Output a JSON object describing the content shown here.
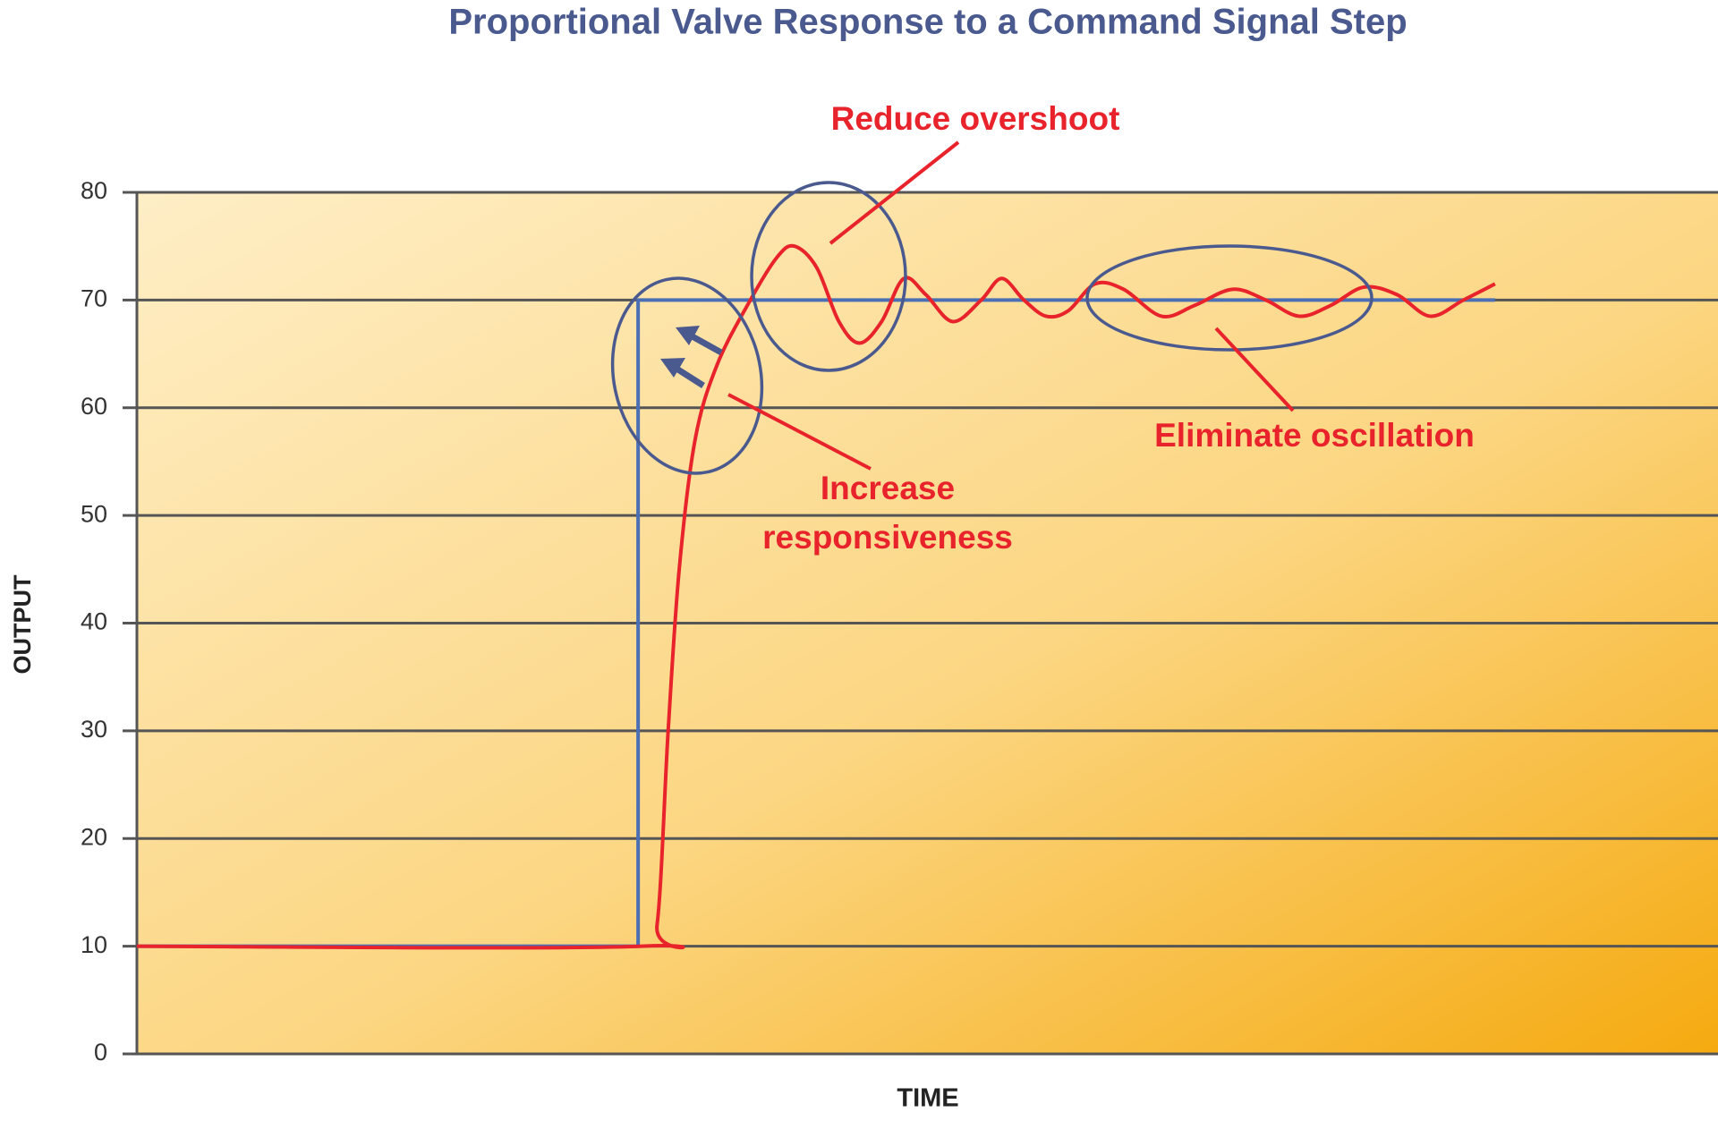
{
  "chart_data": {
    "type": "line",
    "title": "Proportional Valve Response to a Command Signal Step",
    "xlabel": "TIME",
    "ylabel": "OUTPUT",
    "xlim": [
      0,
      100
    ],
    "ylim": [
      0,
      80
    ],
    "yticks": [
      0,
      10,
      20,
      30,
      40,
      50,
      60,
      70,
      80
    ],
    "grid": true,
    "series": [
      {
        "color": "#4a6fb5",
        "x": [
          0,
          31.7,
          31.7,
          85.9
        ],
        "values": [
          10,
          10,
          70,
          70
        ]
      },
      {
        "color": "#e8232b",
        "x": [
          0,
          31.9,
          32.9,
          33.6,
          34.3,
          35.3,
          36.7,
          38.8,
          40.5,
          41.6,
          43,
          44.4,
          45.7,
          47.1,
          48.5,
          49.9,
          51.6,
          53.4,
          54.7,
          56.1,
          57.5,
          58.9,
          60.6,
          62.4,
          64.8,
          66.9,
          69.3,
          71.4,
          73.5,
          75.5,
          77.6,
          79.7,
          81.8,
          83.9,
          85.9
        ],
        "values": [
          10,
          10,
          12,
          30,
          45,
          57,
          64,
          70,
          74,
          75,
          73,
          68,
          66,
          68,
          72,
          70.5,
          68,
          70,
          72,
          70,
          68.5,
          69,
          71.5,
          71,
          68.5,
          69.5,
          71,
          70,
          68.5,
          69.5,
          71.2,
          70.5,
          68.5,
          70,
          71.5
        ]
      }
    ],
    "annotations": [
      "Reduce overshoot",
      "Increase responsiveness",
      "Eliminate oscillation"
    ]
  }
}
